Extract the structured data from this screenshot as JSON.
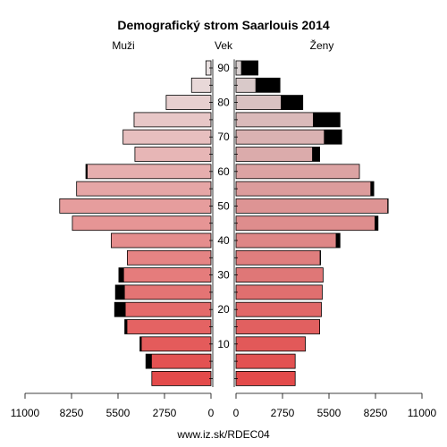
{
  "chart_data": {
    "type": "bar",
    "title": "Demografický strom Saarlouis 2014",
    "left_label": "Muži",
    "center_label": "Vek",
    "right_label": "Ženy",
    "footer": "www.iz.sk/RDEC04",
    "age_ticks": [
      10,
      20,
      30,
      40,
      50,
      60,
      70,
      80,
      90
    ],
    "x_ticks_left": [
      "11000",
      "8250",
      "5500",
      "2750",
      "0"
    ],
    "x_ticks_right": [
      "0",
      "2750",
      "5500",
      "8250",
      "11000"
    ],
    "xlim": [
      0,
      11000
    ],
    "series_note": "black segment = difference versus the opposite sex",
    "groups": [
      {
        "age": 90,
        "male": 300,
        "female": 1300
      },
      {
        "age": 85,
        "male": 1150,
        "female": 2600
      },
      {
        "age": 80,
        "male": 2650,
        "female": 3950
      },
      {
        "age": 75,
        "male": 4550,
        "female": 6150
      },
      {
        "age": 70,
        "male": 5200,
        "female": 6250
      },
      {
        "age": 65,
        "male": 4500,
        "female": 4950
      },
      {
        "age": 60,
        "male": 7400,
        "female": 7300
      },
      {
        "age": 55,
        "male": 7950,
        "female": 8150
      },
      {
        "age": 50,
        "male": 8950,
        "female": 9000
      },
      {
        "age": 45,
        "male": 8200,
        "female": 8400
      },
      {
        "age": 40,
        "male": 5900,
        "female": 6150
      },
      {
        "age": 35,
        "male": 4950,
        "female": 5000
      },
      {
        "age": 30,
        "male": 5450,
        "female": 5150
      },
      {
        "age": 25,
        "male": 5650,
        "female": 5100
      },
      {
        "age": 20,
        "male": 5700,
        "female": 5050
      },
      {
        "age": 15,
        "male": 5100,
        "female": 4950
      },
      {
        "age": 10,
        "male": 4200,
        "female": 4100
      },
      {
        "age": 5,
        "male": 3850,
        "female": 3500
      },
      {
        "age": 0,
        "male": 3500,
        "female": 3500
      }
    ]
  }
}
